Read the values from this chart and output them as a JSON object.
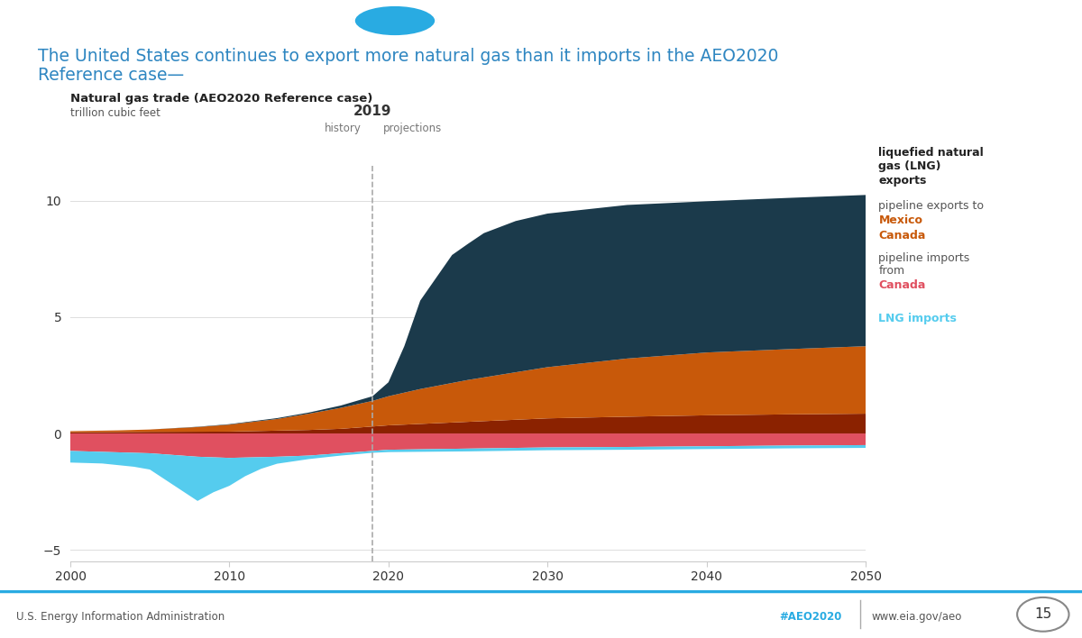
{
  "title_line1": "The United States continues to export more natural gas than it imports in the AEO2020",
  "title_line2": "Reference case—",
  "chart_title": "Natural gas trade (AEO2020 Reference case)",
  "chart_subtitle": "trillion cubic feet",
  "xlim": [
    2000,
    2050
  ],
  "ylim": [
    -5.5,
    11.5
  ],
  "yticks": [
    -5,
    0,
    5,
    10
  ],
  "xticks": [
    2000,
    2010,
    2020,
    2030,
    2040,
    2050
  ],
  "divider_year": 2019,
  "history_label": "history",
  "projections_label": "projections",
  "divider_year_label": "2019",
  "background_color": "#ffffff",
  "plot_bg_color": "#ffffff",
  "title_color": "#2e86c1",
  "footer_left": "U.S. Energy Information Administration",
  "footer_hashtag": "#AEO2020",
  "footer_url": "www.eia.gov/aeo",
  "footer_page": "15",
  "colors": {
    "lng_exports": "#1b3a4b",
    "mexico_exports": "#c8590a",
    "canada_exports": "#8b2200",
    "canada_imports": "#e05060",
    "lng_imports": "#55ccee"
  },
  "legend": {
    "lng_exports_label1": "liquefied natural",
    "lng_exports_label2": "gas (LNG)",
    "lng_exports_label3": "exports",
    "pipeline_exports_label": "pipeline exports to",
    "mexico_label": "Mexico",
    "canada_export_label": "Canada",
    "pipeline_imports_label1": "pipeline imports",
    "pipeline_imports_label2": "from",
    "canada_import_label": "Canada",
    "lng_imports_label": "LNG imports"
  },
  "header_bar_color": "#29abe2"
}
